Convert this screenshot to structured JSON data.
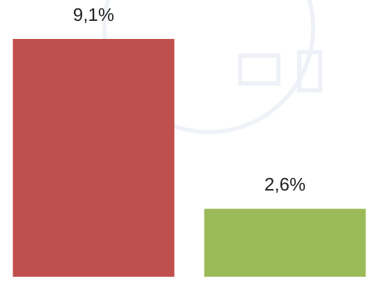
{
  "chart_data": {
    "type": "bar",
    "categories": [
      null,
      null
    ],
    "values": [
      9.1,
      2.6
    ],
    "value_labels": [
      "9,1%",
      "2,6%"
    ],
    "colors": [
      "#c0504d",
      "#9bbb59"
    ],
    "ylim": [
      0,
      9.1
    ]
  }
}
